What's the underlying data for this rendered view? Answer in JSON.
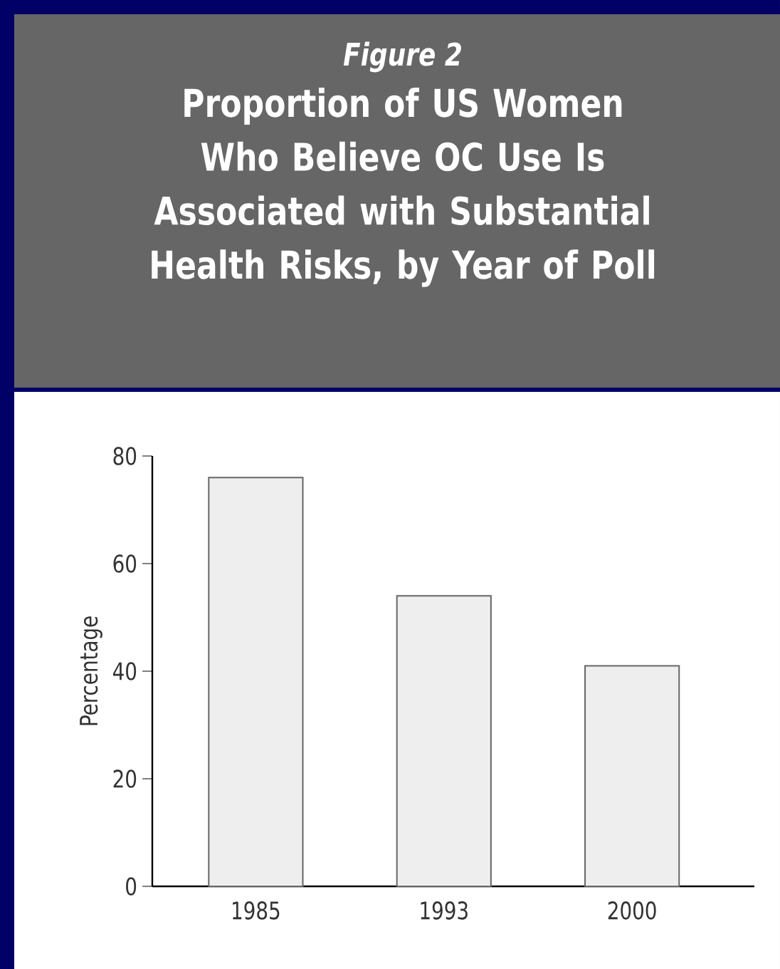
{
  "chart_data": {
    "type": "bar",
    "title": "Figure 2",
    "subtitle": "Proportion of US Women Who Believe OC Use Is Associated with Substantial Health Risks, by Year of Poll",
    "ylabel": "Percentage",
    "categories": [
      "1985",
      "1993",
      "2000"
    ],
    "values": [
      76,
      54,
      41
    ],
    "color": "#eeeeee",
    "ylim": [
      0,
      80
    ],
    "yticks": [
      0,
      20,
      40,
      60,
      80
    ],
    "grid": false
  }
}
